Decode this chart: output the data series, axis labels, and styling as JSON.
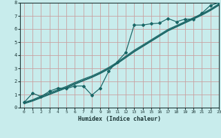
{
  "title": "",
  "xlabel": "Humidex (Indice chaleur)",
  "ylabel": "",
  "xlim": [
    -0.5,
    23
  ],
  "ylim": [
    0,
    8
  ],
  "xticks": [
    0,
    1,
    2,
    3,
    4,
    5,
    6,
    7,
    8,
    9,
    10,
    11,
    12,
    13,
    14,
    15,
    16,
    17,
    18,
    19,
    20,
    21,
    22,
    23
  ],
  "yticks": [
    0,
    1,
    2,
    3,
    4,
    5,
    6,
    7,
    8
  ],
  "bg_color": "#c8ecec",
  "grid_color": "#c8a0a0",
  "line_color": "#1a6666",
  "series_main": [
    0.4,
    1.1,
    0.85,
    1.25,
    1.5,
    1.45,
    1.65,
    1.65,
    0.95,
    1.5,
    2.8,
    3.5,
    4.2,
    6.3,
    6.3,
    6.4,
    6.45,
    6.8,
    6.55,
    6.75,
    6.75,
    7.2,
    7.8,
    8.0
  ],
  "series_smooth1": [
    0.35,
    0.55,
    0.8,
    1.05,
    1.3,
    1.55,
    1.85,
    2.1,
    2.35,
    2.65,
    3.0,
    3.4,
    3.85,
    4.3,
    4.7,
    5.1,
    5.5,
    5.9,
    6.2,
    6.5,
    6.8,
    7.1,
    7.45,
    7.85
  ],
  "series_smooth2": [
    0.3,
    0.5,
    0.75,
    1.0,
    1.25,
    1.5,
    1.78,
    2.05,
    2.3,
    2.6,
    2.95,
    3.35,
    3.8,
    4.25,
    4.65,
    5.05,
    5.45,
    5.85,
    6.15,
    6.45,
    6.75,
    7.05,
    7.4,
    7.8
  ],
  "series_smooth3": [
    0.4,
    0.6,
    0.88,
    1.12,
    1.38,
    1.62,
    1.92,
    2.18,
    2.42,
    2.72,
    3.07,
    3.47,
    3.92,
    4.38,
    4.77,
    5.17,
    5.57,
    5.97,
    6.26,
    6.56,
    6.86,
    7.16,
    7.51,
    7.91
  ]
}
